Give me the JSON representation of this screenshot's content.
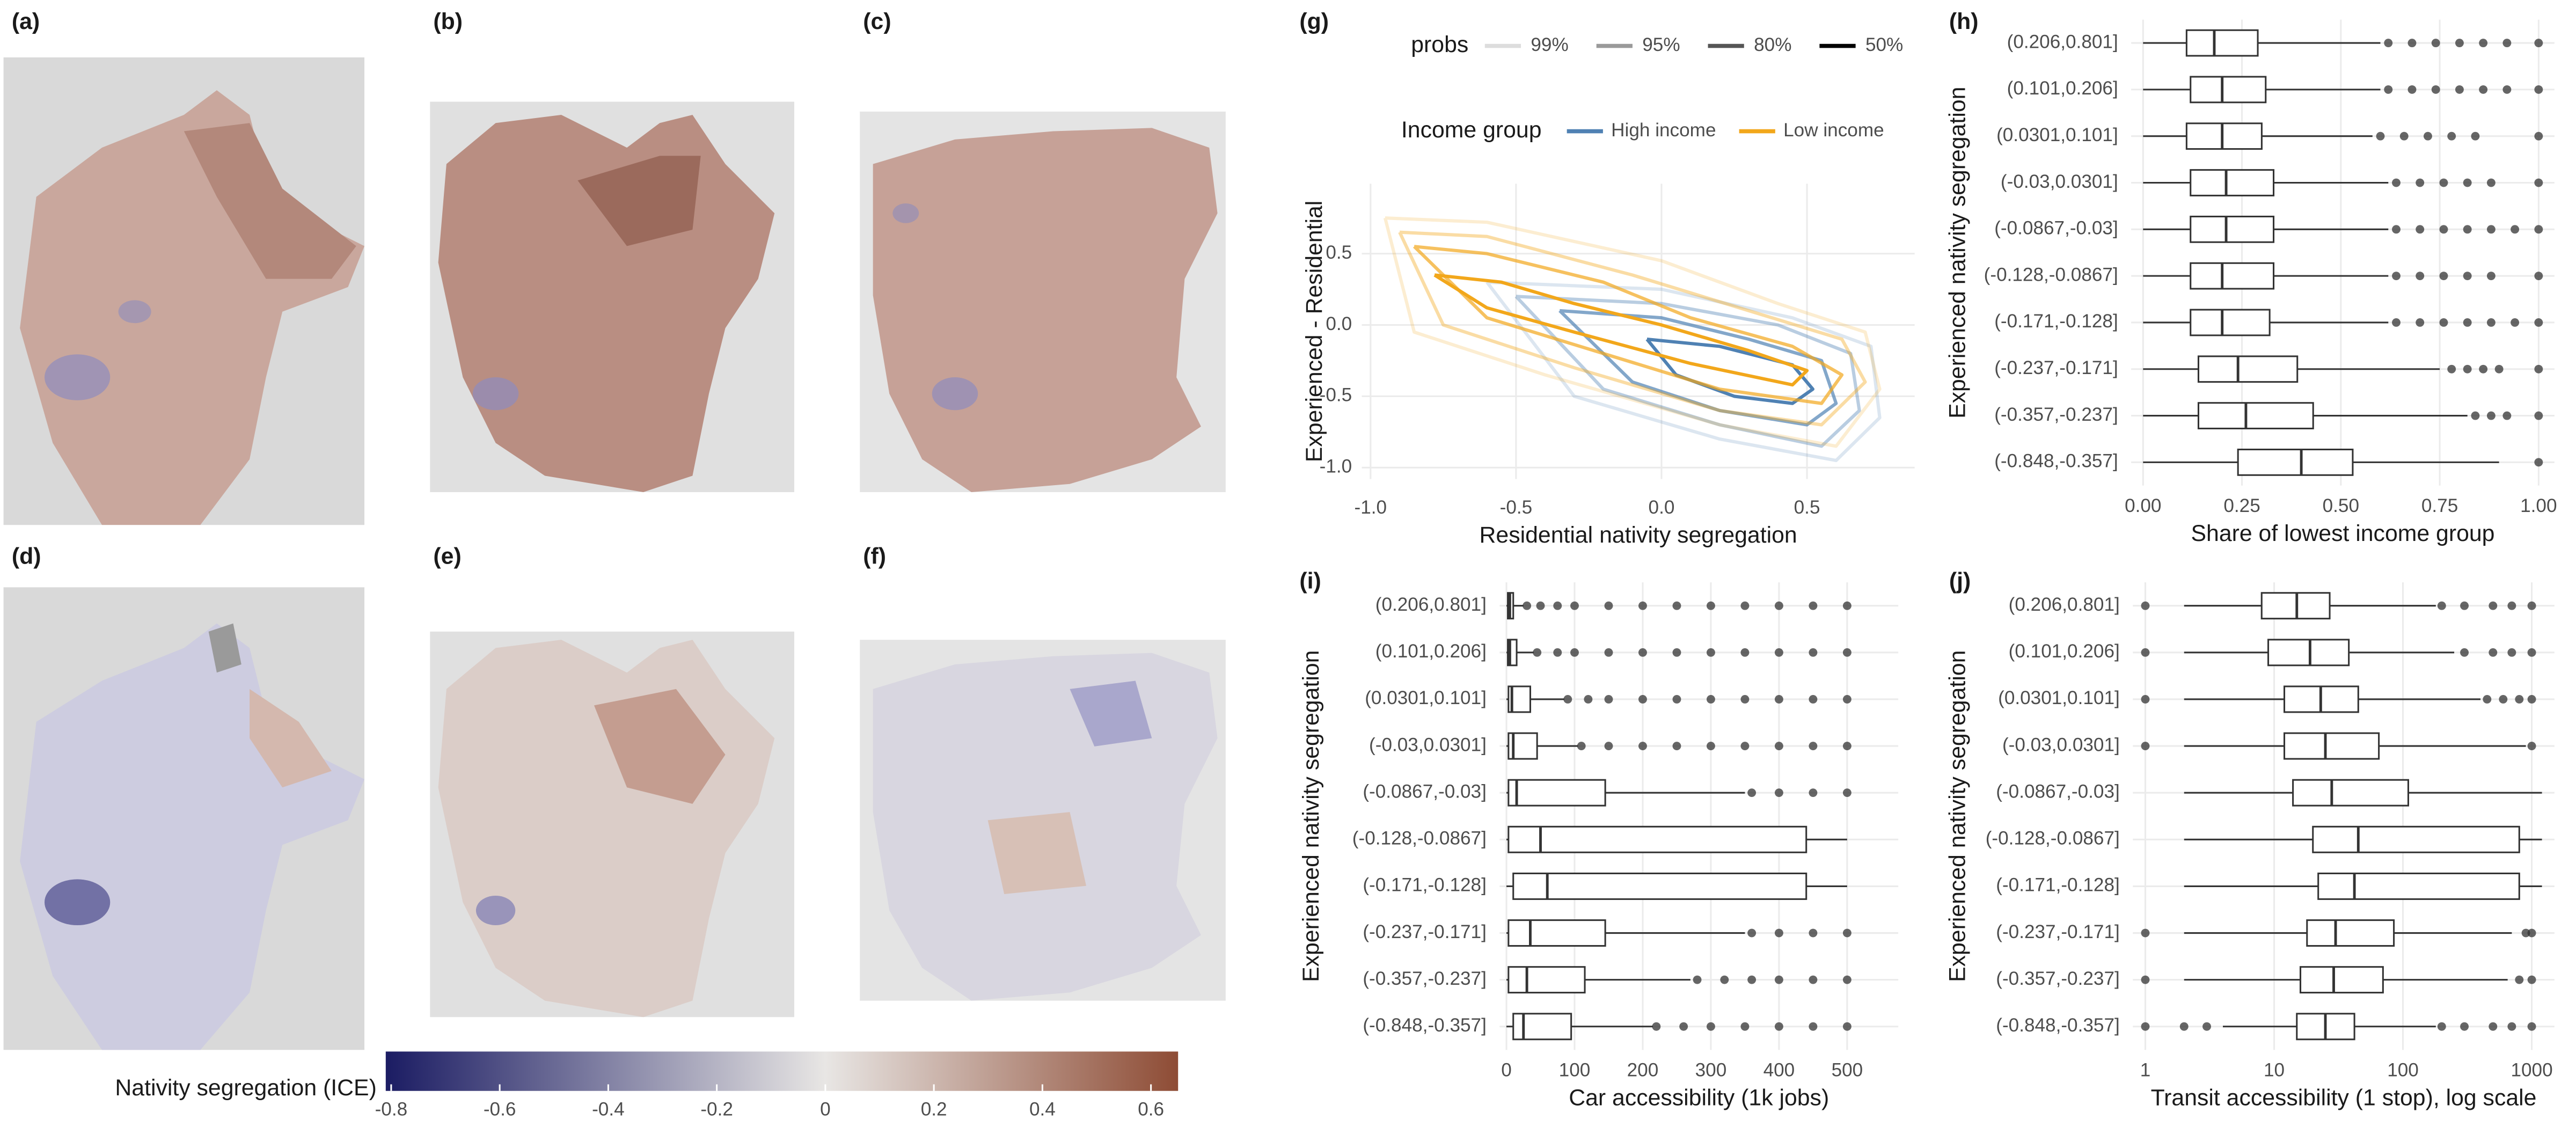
{
  "panel_labels": [
    "(a)",
    "(b)",
    "(c)",
    "(d)",
    "(e)",
    "(f)",
    "(g)",
    "(h)",
    "(i)",
    "(j)"
  ],
  "chart_data": [
    {
      "type": "contour",
      "x_label": "Residential nativity segregation",
      "y_label": "Experienced - Residential",
      "xlim": [
        -1.03,
        0.87
      ],
      "ylim": [
        -1.08,
        0.99
      ],
      "xticks": [
        {
          "value": -1.0,
          "label": "-1.0"
        },
        -0.5,
        {
          "value": 0.0,
          "label": "0.0"
        },
        0.5
      ],
      "yticks": [
        0.5,
        {
          "value": 0.0,
          "label": "0.0"
        },
        -0.5,
        {
          "value": -1.0,
          "label": "-1.0"
        }
      ],
      "grid": true,
      "probs": {
        "title": "probs",
        "levels": [
          "99%",
          "95%",
          "80%",
          "50%"
        ],
        "colors": [
          "#dddddd",
          "#9a9a9a",
          "#555555",
          "#000000"
        ],
        "opacity": [
          0.2,
          0.4,
          0.7,
          1
        ]
      },
      "legend_title": "Income group",
      "groups": [
        {
          "name": "High income",
          "color": "#4f81b3",
          "contours": [
            {
              "x": [
                -0.6,
                0.0,
                0.45,
                0.72,
                0.75,
                0.6,
                0.2,
                -0.3,
                -0.6
              ],
              "y": [
                0.3,
                0.25,
                0.05,
                -0.15,
                -0.65,
                -0.95,
                -0.8,
                -0.5,
                0.3
              ]
            },
            {
              "x": [
                -0.5,
                0.0,
                0.4,
                0.65,
                0.68,
                0.55,
                0.2,
                -0.2,
                -0.5
              ],
              "y": [
                0.2,
                0.15,
                0.0,
                -0.2,
                -0.6,
                -0.85,
                -0.7,
                -0.45,
                0.2
              ]
            },
            {
              "x": [
                -0.35,
                0.0,
                0.3,
                0.55,
                0.6,
                0.5,
                0.2,
                -0.1,
                -0.35
              ],
              "y": [
                0.1,
                0.05,
                -0.1,
                -0.25,
                -0.55,
                -0.7,
                -0.6,
                -0.4,
                0.1
              ]
            },
            {
              "x": [
                -0.05,
                0.2,
                0.45,
                0.52,
                0.45,
                0.25,
                0.05,
                -0.05
              ],
              "y": [
                -0.1,
                -0.15,
                -0.28,
                -0.45,
                -0.55,
                -0.5,
                -0.35,
                -0.1
              ]
            }
          ]
        },
        {
          "name": "Low income",
          "color": "#f2a71b",
          "contours": [
            {
              "x": [
                -0.95,
                -0.6,
                0.0,
                0.4,
                0.7,
                0.75,
                0.6,
                0.2,
                -0.4,
                -0.85,
                -0.95
              ],
              "y": [
                0.75,
                0.72,
                0.45,
                0.15,
                -0.05,
                -0.45,
                -0.85,
                -0.7,
                -0.35,
                -0.05,
                0.75
              ]
            },
            {
              "x": [
                -0.9,
                -0.6,
                -0.1,
                0.3,
                0.62,
                0.7,
                0.55,
                0.2,
                -0.3,
                -0.75,
                -0.9
              ],
              "y": [
                0.65,
                0.62,
                0.35,
                0.1,
                -0.1,
                -0.4,
                -0.7,
                -0.6,
                -0.3,
                0.0,
                0.65
              ]
            },
            {
              "x": [
                -0.85,
                -0.6,
                -0.2,
                0.1,
                0.45,
                0.62,
                0.55,
                0.2,
                -0.2,
                -0.6,
                -0.85
              ],
              "y": [
                0.55,
                0.5,
                0.3,
                0.05,
                -0.15,
                -0.35,
                -0.55,
                -0.45,
                -0.2,
                0.05,
                0.55
              ]
            },
            {
              "x": [
                -0.78,
                -0.55,
                -0.3,
                0.0,
                0.3,
                0.5,
                0.45,
                0.1,
                -0.3,
                -0.6,
                -0.78
              ],
              "y": [
                0.35,
                0.3,
                0.15,
                0.0,
                -0.18,
                -0.32,
                -0.42,
                -0.27,
                -0.05,
                0.12,
                0.35
              ]
            }
          ]
        }
      ]
    },
    {
      "type": "boxplot",
      "x_label": "Share of lowest income group",
      "y_label": "Experienced nativity segregation",
      "xlim": [
        -0.03,
        1.04
      ],
      "xticks": [
        {
          "value": 0,
          "label": "0.00"
        },
        {
          "value": 0.25,
          "label": "0.25"
        },
        {
          "value": 0.5,
          "label": "0.50"
        },
        {
          "value": 0.75,
          "label": "0.75"
        },
        {
          "value": 1,
          "label": "1.00"
        }
      ],
      "grid": true,
      "log_scale": false,
      "categories": [
        "(0.206,0.801]",
        "(0.101,0.206]",
        "(0.0301,0.101]",
        "(-0.03,0.0301]",
        "(-0.0867,-0.03]",
        "(-0.128,-0.0867]",
        "(-0.171,-0.128]",
        "(-0.237,-0.171]",
        "(-0.357,-0.237]",
        "(-0.848,-0.357]"
      ],
      "min": [
        0,
        0,
        0,
        0,
        0,
        0,
        0,
        0,
        0,
        0
      ],
      "q1": [
        0.11,
        0.12,
        0.11,
        0.12,
        0.12,
        0.12,
        0.12,
        0.14,
        0.14,
        0.24
      ],
      "median": [
        0.18,
        0.2,
        0.2,
        0.21,
        0.21,
        0.2,
        0.2,
        0.24,
        0.26,
        0.4
      ],
      "q3": [
        0.29,
        0.31,
        0.3,
        0.33,
        0.33,
        0.33,
        0.32,
        0.39,
        0.43,
        0.53
      ],
      "max": [
        0.6,
        0.6,
        0.58,
        0.62,
        0.62,
        0.62,
        0.62,
        0.75,
        0.82,
        0.9
      ],
      "outliers": [
        [
          0.62,
          0.68,
          0.74,
          0.8,
          0.86,
          0.92,
          1.0
        ],
        [
          0.62,
          0.68,
          0.74,
          0.8,
          0.86,
          0.92,
          1.0
        ],
        [
          0.6,
          0.66,
          0.72,
          0.78,
          0.84,
          1.0
        ],
        [
          0.64,
          0.7,
          0.76,
          0.82,
          0.88,
          1.0
        ],
        [
          0.64,
          0.7,
          0.76,
          0.82,
          0.88,
          0.94,
          1.0
        ],
        [
          0.64,
          0.7,
          0.76,
          0.82,
          0.88,
          1.0
        ],
        [
          0.64,
          0.7,
          0.76,
          0.82,
          0.88,
          0.94,
          1.0
        ],
        [
          0.78,
          0.82,
          0.86,
          0.9,
          1.0
        ],
        [
          0.84,
          0.88,
          0.92,
          1.0
        ],
        [
          1.0
        ]
      ]
    },
    {
      "type": "boxplot",
      "x_label": "Car accessibility (1k jobs)",
      "y_label": "Experienced nativity segregation",
      "xlim": [
        -10,
        575
      ],
      "xticks": [
        0,
        100,
        200,
        300,
        400,
        500
      ],
      "grid": true,
      "log_scale": false,
      "categories": [
        "(0.206,0.801]",
        "(0.101,0.206]",
        "(0.0301,0.101]",
        "(-0.03,0.0301]",
        "(-0.0867,-0.03]",
        "(-0.128,-0.0867]",
        "(-0.171,-0.128]",
        "(-0.237,-0.171]",
        "(-0.357,-0.237]",
        "(-0.848,-0.357]"
      ],
      "min": [
        0,
        0,
        0,
        0,
        0,
        0,
        0,
        0,
        0,
        0
      ],
      "q1": [
        2,
        2,
        3,
        3,
        3,
        3,
        10,
        3,
        3,
        10
      ],
      "median": [
        5,
        5,
        8,
        10,
        15,
        50,
        60,
        35,
        30,
        25
      ],
      "q3": [
        10,
        15,
        35,
        45,
        145,
        440,
        440,
        145,
        115,
        95
      ],
      "max": [
        25,
        40,
        85,
        105,
        350,
        500,
        500,
        350,
        270,
        215
      ],
      "outliers": [
        [
          30,
          50,
          75,
          100,
          150,
          200,
          250,
          300,
          350,
          400,
          450,
          500
        ],
        [
          45,
          75,
          100,
          150,
          200,
          250,
          300,
          350,
          400,
          450,
          500
        ],
        [
          90,
          120,
          150,
          200,
          250,
          300,
          350,
          400,
          450,
          500
        ],
        [
          110,
          150,
          200,
          250,
          300,
          350,
          400,
          450,
          500
        ],
        [
          360,
          400,
          450,
          500
        ],
        [],
        [],
        [
          360,
          400,
          450,
          500
        ],
        [
          280,
          320,
          360,
          400,
          450,
          500
        ],
        [
          220,
          260,
          300,
          350,
          400,
          450,
          500
        ]
      ]
    },
    {
      "type": "boxplot",
      "x_label": "Transit accessibility (1 stop), log scale",
      "y_label": "Experienced nativity segregation",
      "xlim": [
        0.8,
        1500
      ],
      "xticks": [
        1,
        10,
        100,
        1000
      ],
      "grid": true,
      "log_scale": true,
      "categories": [
        "(0.206,0.801]",
        "(0.101,0.206]",
        "(0.0301,0.101]",
        "(-0.03,0.0301]",
        "(-0.0867,-0.03]",
        "(-0.128,-0.0867]",
        "(-0.171,-0.128]",
        "(-0.237,-0.171]",
        "(-0.357,-0.237]",
        "(-0.848,-0.357]"
      ],
      "min": [
        2,
        2,
        2,
        2,
        2,
        2,
        2,
        2,
        2,
        4
      ],
      "q1": [
        8,
        9,
        12,
        12,
        14,
        20,
        22,
        18,
        16,
        15
      ],
      "median": [
        15,
        19,
        23,
        25,
        28,
        45,
        42,
        30,
        29,
        25
      ],
      "q3": [
        27,
        38,
        45,
        65,
        110,
        800,
        800,
        85,
        70,
        42
      ],
      "max": [
        180,
        250,
        400,
        900,
        1200,
        1200,
        1200,
        700,
        650,
        180
      ],
      "outliers": [
        [
          1,
          200,
          300,
          500,
          700,
          1000
        ],
        [
          1,
          300,
          500,
          700,
          1000
        ],
        [
          1,
          450,
          600,
          800,
          1000
        ],
        [
          1,
          1000
        ],
        [],
        [],
        [],
        [
          1,
          900,
          1000
        ],
        [
          1,
          800,
          1000
        ],
        [
          1,
          2,
          3,
          200,
          300,
          500,
          700,
          1000
        ]
      ]
    },
    {
      "type": "colorbar",
      "title": "Nativity segregation (ICE)",
      "xlim": [
        -0.81,
        0.65
      ],
      "xticks": [
        -0.8,
        -0.6,
        -0.4,
        -0.2,
        0,
        0.2,
        0.4,
        0.6
      ],
      "palette": {
        "low": "#1b1c63",
        "mid": "#e8e6e4",
        "high": "#8e4c35",
        "midpoint": 0
      }
    }
  ]
}
